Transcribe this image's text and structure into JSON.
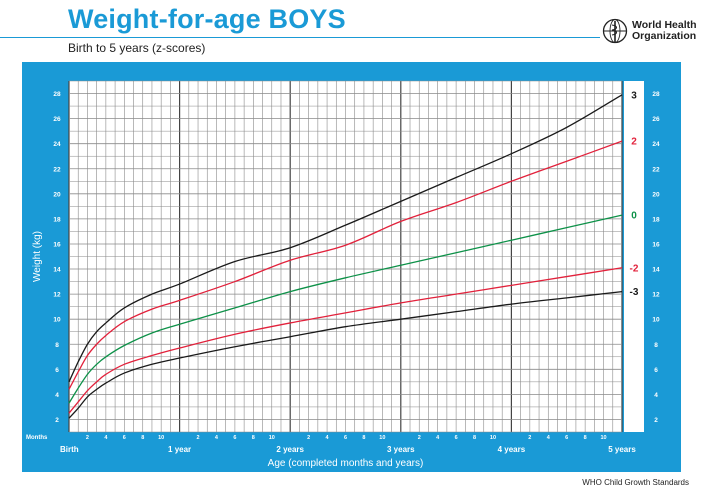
{
  "header": {
    "title": "Weight-for-age BOYS",
    "subtitle": "Birth to 5 years (z-scores)",
    "org_line1": "World Health",
    "org_line2": "Organization",
    "footer": "WHO Child Growth Standards"
  },
  "colors": {
    "frame": "#1a9ad6",
    "grid_bg": "#ffffff",
    "grid_line": "#8a8a8a",
    "title": "#1a9ad6",
    "z3": "#1a1a1a",
    "z2": "#e2213b",
    "z0": "#0d9148",
    "z-2": "#e2213b",
    "z-3": "#1a1a1a"
  },
  "chart_data": {
    "type": "line",
    "title": "Weight-for-age BOYS",
    "subtitle": "Birth to 5 years (z-scores)",
    "xlabel": "Age (completed months and years)",
    "ylabel": "Weight (kg)",
    "xlim": [
      0,
      60
    ],
    "ylim": [
      1,
      29
    ],
    "y_ticks": [
      2,
      4,
      6,
      8,
      10,
      12,
      14,
      16,
      18,
      20,
      22,
      24,
      26,
      28
    ],
    "months_label": "Months",
    "month_ticks_label_values": [
      "2",
      "4",
      "6",
      "8",
      "10"
    ],
    "year_labels": [
      {
        "month": 0,
        "label": "Birth"
      },
      {
        "month": 12,
        "label": "1 year"
      },
      {
        "month": 24,
        "label": "2 years"
      },
      {
        "month": 36,
        "label": "3 years"
      },
      {
        "month": 48,
        "label": "4 years"
      },
      {
        "month": 60,
        "label": "5 years"
      }
    ],
    "grid": true,
    "series": [
      {
        "name": "3",
        "color": "#1a1a1a",
        "x": [
          0,
          1,
          2,
          3,
          4,
          6,
          9,
          12,
          18,
          24,
          30,
          36,
          42,
          48,
          54,
          60
        ],
        "y": [
          5.0,
          6.6,
          8.0,
          9.0,
          9.7,
          10.9,
          12.0,
          12.8,
          14.6,
          15.7,
          17.5,
          19.4,
          21.3,
          23.2,
          25.3,
          27.9
        ]
      },
      {
        "name": "2",
        "color": "#e2213b",
        "x": [
          0,
          1,
          2,
          3,
          4,
          6,
          9,
          12,
          18,
          24,
          30,
          36,
          42,
          48,
          54,
          60
        ],
        "y": [
          4.4,
          5.8,
          7.1,
          8.0,
          8.7,
          9.8,
          10.8,
          11.5,
          13.0,
          14.7,
          15.9,
          17.8,
          19.3,
          21.0,
          22.6,
          24.2
        ]
      },
      {
        "name": "0",
        "color": "#0d9148",
        "x": [
          0,
          1,
          2,
          3,
          4,
          6,
          9,
          12,
          18,
          24,
          30,
          36,
          42,
          48,
          54,
          60
        ],
        "y": [
          3.3,
          4.5,
          5.6,
          6.4,
          7.0,
          7.9,
          8.9,
          9.6,
          10.9,
          12.2,
          13.3,
          14.3,
          15.3,
          16.3,
          17.3,
          18.3
        ]
      },
      {
        "name": "-2",
        "color": "#e2213b",
        "x": [
          0,
          1,
          2,
          3,
          4,
          6,
          9,
          12,
          18,
          24,
          30,
          36,
          42,
          48,
          54,
          60
        ],
        "y": [
          2.5,
          3.4,
          4.3,
          5.0,
          5.6,
          6.4,
          7.1,
          7.7,
          8.8,
          9.7,
          10.5,
          11.3,
          12.0,
          12.7,
          13.4,
          14.1
        ]
      },
      {
        "name": "-3",
        "color": "#1a1a1a",
        "x": [
          0,
          1,
          2,
          3,
          4,
          6,
          9,
          12,
          18,
          24,
          30,
          36,
          42,
          48,
          54,
          60
        ],
        "y": [
          2.1,
          2.9,
          3.8,
          4.4,
          4.9,
          5.7,
          6.4,
          6.9,
          7.8,
          8.6,
          9.4,
          10.0,
          10.6,
          11.2,
          11.7,
          12.2
        ]
      }
    ]
  }
}
